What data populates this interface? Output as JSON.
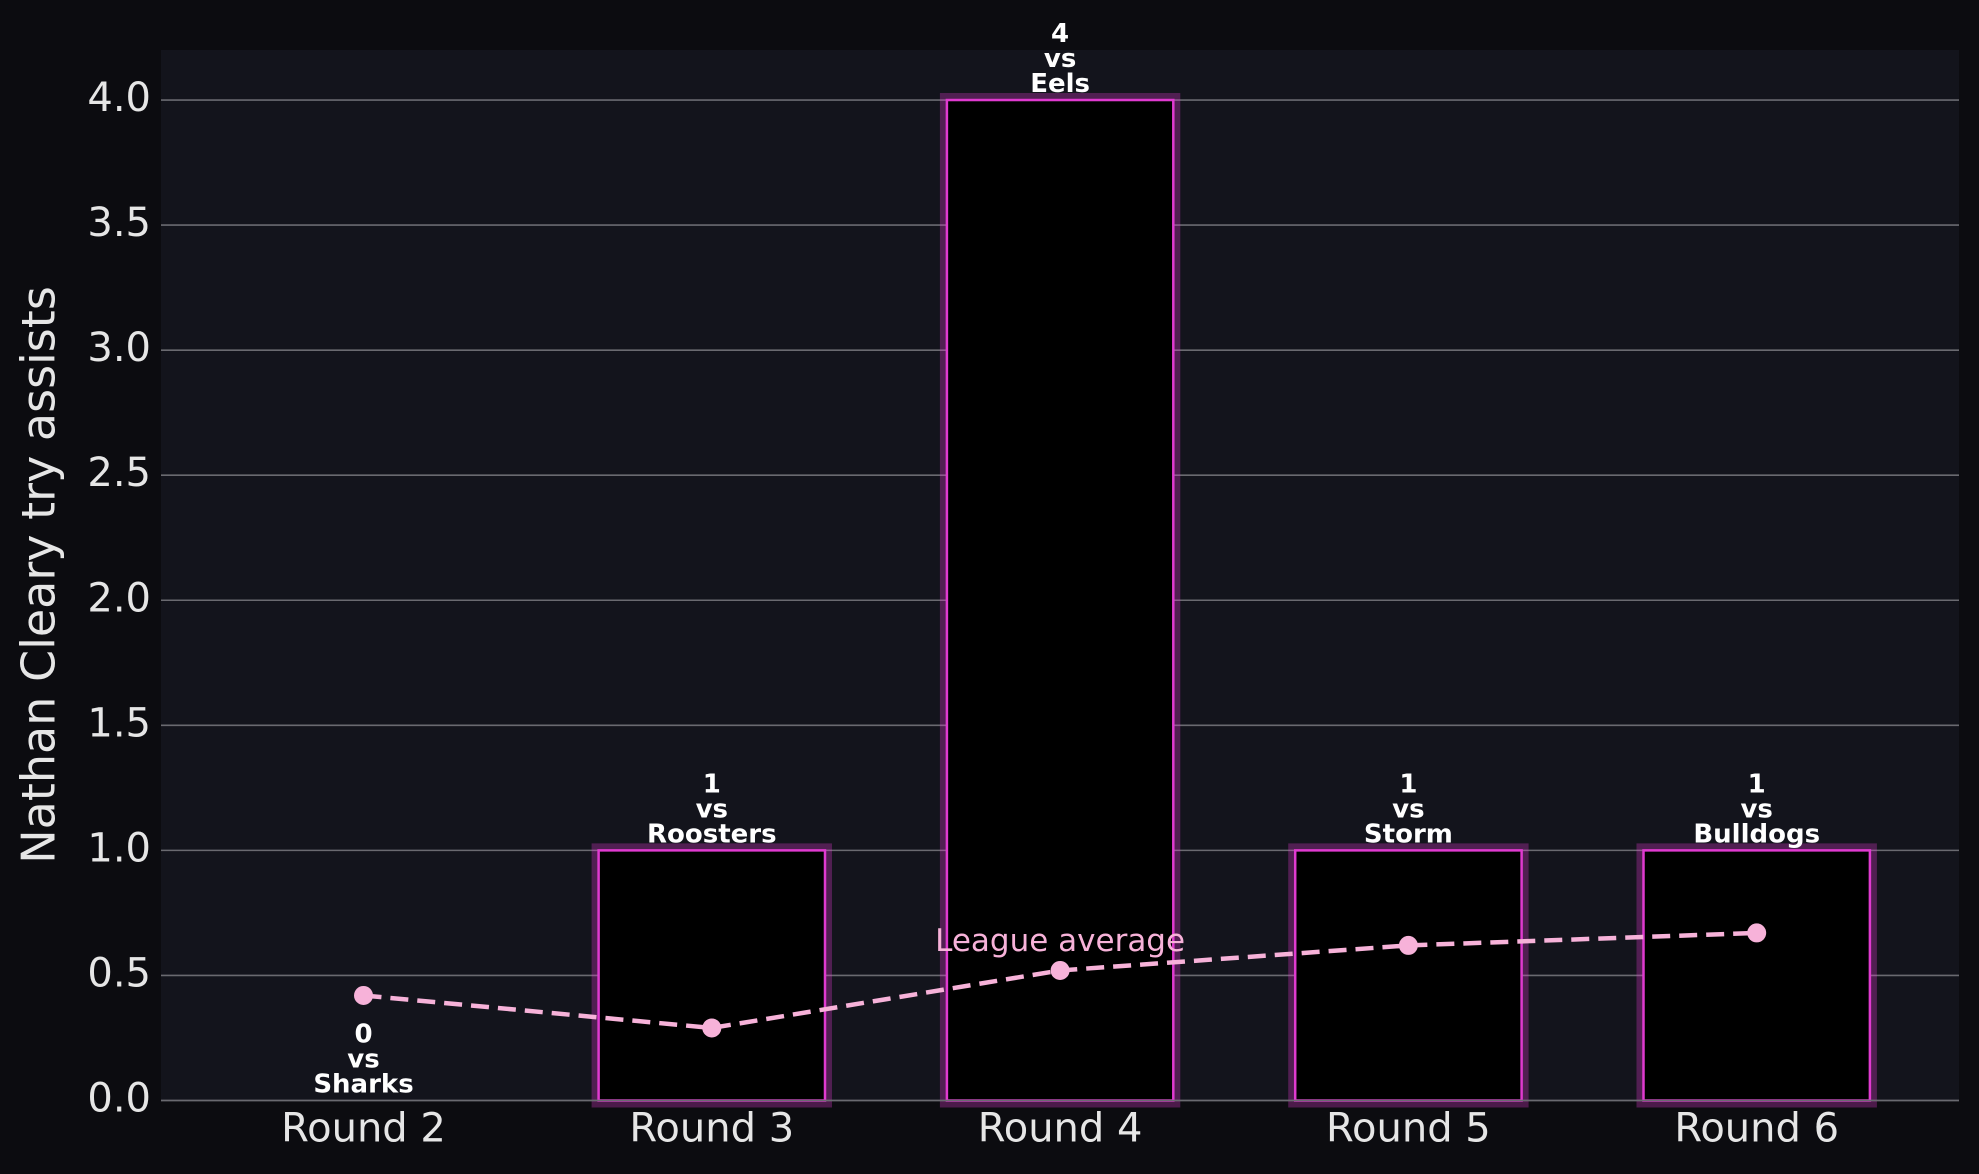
{
  "chart_data": {
    "type": "bar",
    "ylabel": "Nathan Cleary try assists",
    "categories": [
      "Round 2",
      "Round 3",
      "Round 4",
      "Round 5",
      "Round 6"
    ],
    "values": [
      0,
      1,
      4,
      1,
      1
    ],
    "value_labels": [
      "0\nvs\nSharks",
      "1\nvs\nRoosters",
      "4\nvs\nEels",
      "1\nvs\nStorm",
      "1\nvs\nBulldogs"
    ],
    "color": "#e03ad0",
    "line_series": {
      "name": "League average",
      "color": "#f7b2d9",
      "values": [
        0.42,
        0.29,
        0.52,
        0.62,
        0.67
      ]
    },
    "ylim": [
      0,
      4.2
    ],
    "yticks": [
      {
        "value": 0,
        "label": "0.0"
      },
      {
        "value": 0.5,
        "label": "0.5"
      },
      {
        "value": 1,
        "label": "1.0"
      },
      {
        "value": 1.5,
        "label": "1.5"
      },
      {
        "value": 2,
        "label": "2.0"
      },
      {
        "value": 2.5,
        "label": "2.5"
      },
      {
        "value": 3,
        "label": "3.0"
      },
      {
        "value": 3.5,
        "label": "3.5"
      },
      {
        "value": 4,
        "label": "4.0"
      }
    ],
    "grid": true
  }
}
